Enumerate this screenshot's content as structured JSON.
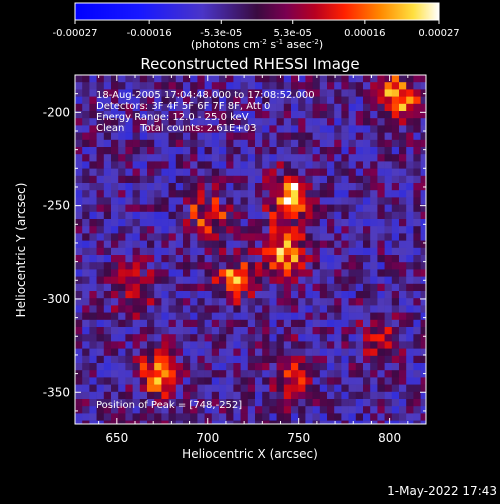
{
  "colorbar": {
    "ticks": [
      "-0.00027",
      "-0.00016",
      "-5.3e-05",
      "5.3e-05",
      "0.00016",
      "0.00027"
    ],
    "unit_label_html": "(photons cm<tspan baseline-shift='super' font-size='7'>-2</tspan> s<tspan baseline-shift='super' font-size='7'>-1</tspan> asec<tspan baseline-shift='super' font-size='7'>-2</tspan>)",
    "min": -0.00027,
    "max": 0.00027
  },
  "chart_data": {
    "type": "heatmap",
    "title": "Reconstructed RHESSI Image",
    "xlabel": "Heliocentric X (arcsec)",
    "ylabel": "Heliocentric Y (arcsec)",
    "xlim": [
      627,
      820
    ],
    "ylim": [
      -367,
      -180
    ],
    "x_ticks": [
      650,
      700,
      750,
      800
    ],
    "y_ticks": [
      -200,
      -250,
      -300,
      -350
    ],
    "peak": [
      748,
      -252
    ],
    "hot_regions": [
      {
        "x": 745,
        "y": -245,
        "value": 0.00027
      },
      {
        "x": 742,
        "y": -275,
        "value": 0.00022
      },
      {
        "x": 715,
        "y": -290,
        "value": 0.00018
      },
      {
        "x": 700,
        "y": -255,
        "value": 0.00016
      },
      {
        "x": 672,
        "y": -340,
        "value": 0.0002
      },
      {
        "x": 745,
        "y": -340,
        "value": 0.00016
      },
      {
        "x": 805,
        "y": -192,
        "value": 0.0002
      },
      {
        "x": 660,
        "y": -295,
        "value": 0.00014
      },
      {
        "x": 795,
        "y": -320,
        "value": 0.00012
      }
    ]
  },
  "annotations": {
    "time": "18-Aug-2005 17:04:48.000 to 17:08:52.000",
    "detectors": "Detectors: 3F 4F 5F 6F 7F 8F, Att 0",
    "energy": "Energy Range: 12.0 - 25.0 keV",
    "clean": "Clean     Total counts: 2.61E+03",
    "peak": "Position of Peak = [748,-252]"
  },
  "timestamp": "1-May-2022 17:43",
  "colors": {
    "background": "#000000",
    "foreground": "#ffffff"
  }
}
